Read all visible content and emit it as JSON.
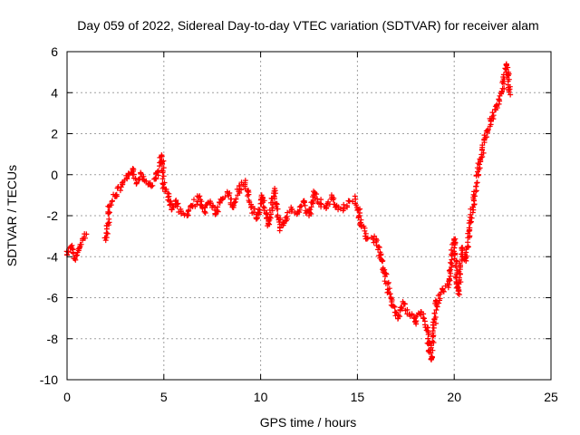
{
  "chart_data": {
    "type": "scatter",
    "title": "Day 059 of 2022, Sidereal Day-to-day VTEC variation (SDTVAR) for receiver alam",
    "xlabel": "GPS time / hours",
    "ylabel": "SDTVAR / TECUs",
    "xlim": [
      0,
      25
    ],
    "ylim": [
      -10,
      6
    ],
    "xticks": [
      "0",
      "5",
      "10",
      "15",
      "20",
      "25"
    ],
    "yticks": [
      "-10",
      "-8",
      "-6",
      "-4",
      "-2",
      "0",
      "2",
      "4",
      "6"
    ],
    "grid": true,
    "marker": "+",
    "series": [
      {
        "name": "SDTVAR",
        "color": "#ff0000",
        "x": [
          0.0,
          0.2,
          0.4,
          0.6,
          0.8,
          1.0,
          2.0,
          2.2,
          2.5,
          2.8,
          3.1,
          3.4,
          3.6,
          3.8,
          4.0,
          4.3,
          4.6,
          4.9,
          5.0,
          5.2,
          5.4,
          5.6,
          5.9,
          6.2,
          6.5,
          6.8,
          7.1,
          7.4,
          7.7,
          8.0,
          8.3,
          8.6,
          8.9,
          9.2,
          9.5,
          9.8,
          10.1,
          10.4,
          10.7,
          11.0,
          11.3,
          11.6,
          11.9,
          12.2,
          12.5,
          12.8,
          13.1,
          13.4,
          13.7,
          14.0,
          14.3,
          14.6,
          14.9,
          15.1,
          15.4,
          16.0,
          16.4,
          16.8,
          17.1,
          17.4,
          17.7,
          18.0,
          18.3,
          18.6,
          18.8,
          19.1,
          19.4,
          19.7,
          20.0,
          20.2,
          20.4,
          20.6,
          20.8,
          21.0,
          21.3,
          21.6,
          21.9,
          22.2,
          22.5,
          22.7,
          22.9
        ],
        "y": [
          -3.9,
          -3.5,
          -4.1,
          -3.7,
          -3.2,
          -2.9,
          -3.2,
          -1.5,
          -1.0,
          -0.6,
          -0.2,
          0.3,
          -0.4,
          0.1,
          -0.3,
          -0.5,
          -0.2,
          0.9,
          -0.6,
          -0.9,
          -1.7,
          -1.3,
          -1.9,
          -2.0,
          -1.5,
          -1.1,
          -1.8,
          -1.3,
          -1.9,
          -1.2,
          -0.9,
          -1.6,
          -0.7,
          -0.4,
          -1.6,
          -2.1,
          -1.1,
          -2.4,
          -0.8,
          -2.6,
          -2.1,
          -1.7,
          -1.9,
          -1.3,
          -2.0,
          -0.9,
          -1.4,
          -1.6,
          -1.1,
          -1.7,
          -1.6,
          -1.3,
          -1.2,
          -2.0,
          -3.0,
          -3.2,
          -4.8,
          -6.4,
          -7.0,
          -6.3,
          -6.8,
          -7.2,
          -6.7,
          -7.6,
          -9.0,
          -6.2,
          -5.6,
          -5.5,
          -3.2,
          -5.8,
          -3.6,
          -4.2,
          -2.6,
          -1.2,
          0.5,
          1.8,
          2.6,
          3.4,
          4.2,
          5.4,
          3.9
        ]
      }
    ]
  }
}
